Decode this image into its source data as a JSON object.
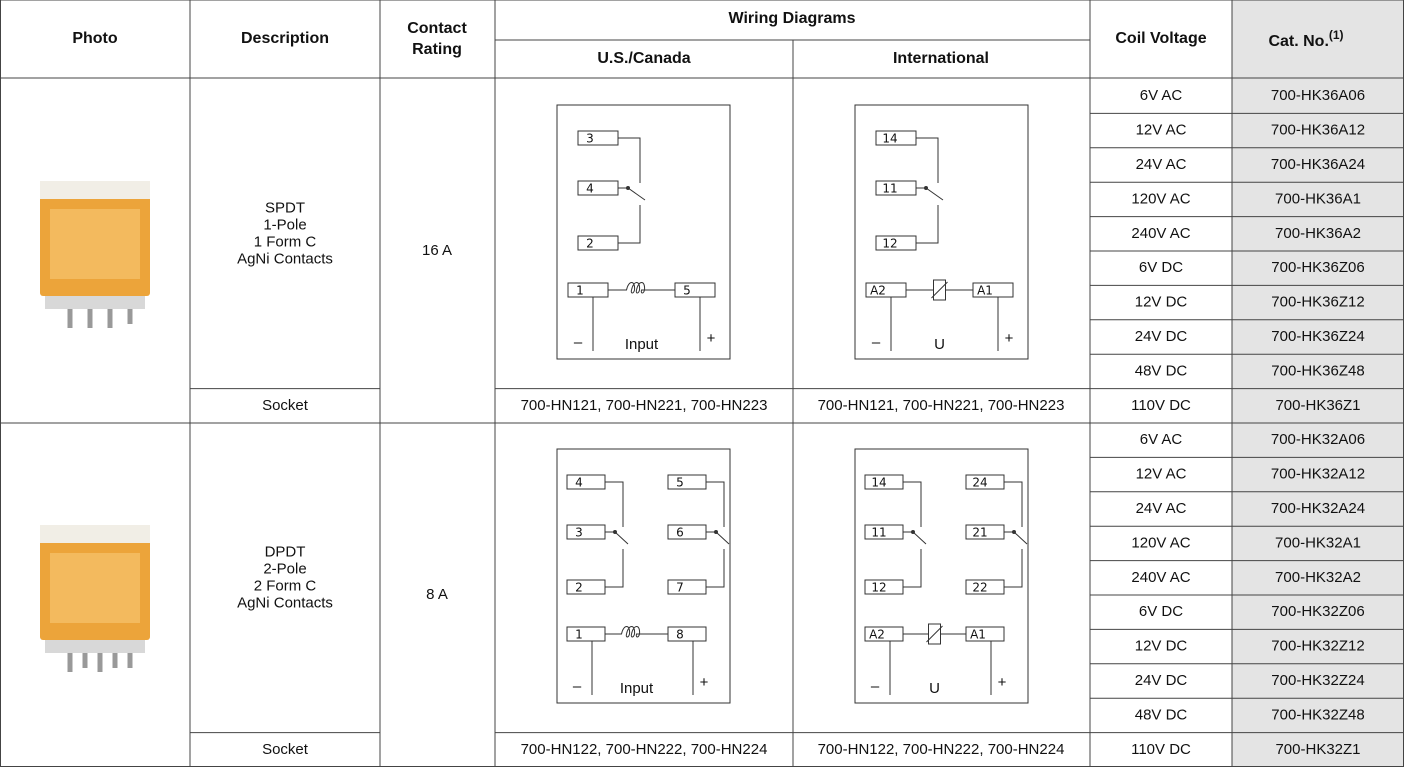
{
  "header": {
    "photo": "Photo",
    "description": "Description",
    "contact_rating": [
      "Contact",
      "Rating"
    ],
    "wiring_diagrams": "Wiring Diagrams",
    "us_canada": "U.S./Canada",
    "international": "International",
    "coil_voltage": "Coil Voltage",
    "cat_no": "Cat. No.",
    "cat_no_note": "(1)"
  },
  "table": {
    "rows": [
      {
        "description": [
          "SPDT",
          "1-Pole",
          "1 Form C",
          "AgNi Contacts"
        ],
        "socket_label": "Socket",
        "contact_rating": "16 A",
        "us_diagram": {
          "contacts": [
            [
              "3",
              "4",
              "2"
            ]
          ],
          "coil": [
            "1",
            "5"
          ],
          "polarity": [
            "–",
            "+"
          ],
          "input": "Input"
        },
        "intl_diagram": {
          "contacts": [
            [
              "14",
              "11",
              "12"
            ]
          ],
          "coil": [
            "A2",
            "A1"
          ],
          "polarity": [
            "–",
            "+"
          ],
          "input": "U"
        },
        "us_socket": "700-HN121, 700-HN221, 700-HN223",
        "intl_socket": "700-HN121, 700-HN221, 700-HN223",
        "coils": [
          [
            "6V AC",
            "700-HK36A06"
          ],
          [
            "12V AC",
            "700-HK36A12"
          ],
          [
            "24V AC",
            "700-HK36A24"
          ],
          [
            "120V AC",
            "700-HK36A1"
          ],
          [
            "240V AC",
            "700-HK36A2"
          ],
          [
            "6V DC",
            "700-HK36Z06"
          ],
          [
            "12V DC",
            "700-HK36Z12"
          ],
          [
            "24V DC",
            "700-HK36Z24"
          ],
          [
            "48V DC",
            "700-HK36Z48"
          ],
          [
            "110V DC",
            "700-HK36Z1"
          ]
        ]
      },
      {
        "description": [
          "DPDT",
          "2-Pole",
          "2 Form C",
          "AgNi Contacts"
        ],
        "socket_label": "Socket",
        "contact_rating": "8 A",
        "us_diagram": {
          "contacts": [
            [
              "4",
              "3",
              "2"
            ],
            [
              "5",
              "6",
              "7"
            ]
          ],
          "coil": [
            "1",
            "8"
          ],
          "polarity": [
            "–",
            "+"
          ],
          "input": "Input"
        },
        "intl_diagram": {
          "contacts": [
            [
              "14",
              "11",
              "12"
            ],
            [
              "24",
              "21",
              "22"
            ]
          ],
          "coil": [
            "A2",
            "A1"
          ],
          "polarity": [
            "–",
            "+"
          ],
          "input": "U"
        },
        "us_socket": "700-HN122, 700-HN222, 700-HN224",
        "intl_socket": "700-HN122, 700-HN222, 700-HN224",
        "coils": [
          [
            "6V AC",
            "700-HK32A06"
          ],
          [
            "12V AC",
            "700-HK32A12"
          ],
          [
            "24V AC",
            "700-HK32A24"
          ],
          [
            "120V AC",
            "700-HK32A1"
          ],
          [
            "240V AC",
            "700-HK32A2"
          ],
          [
            "6V DC",
            "700-HK32Z06"
          ],
          [
            "12V DC",
            "700-HK32Z12"
          ],
          [
            "24V DC",
            "700-HK32Z24"
          ],
          [
            "48V DC",
            "700-HK32Z48"
          ],
          [
            "110V DC",
            "700-HK32Z1"
          ]
        ]
      }
    ]
  }
}
